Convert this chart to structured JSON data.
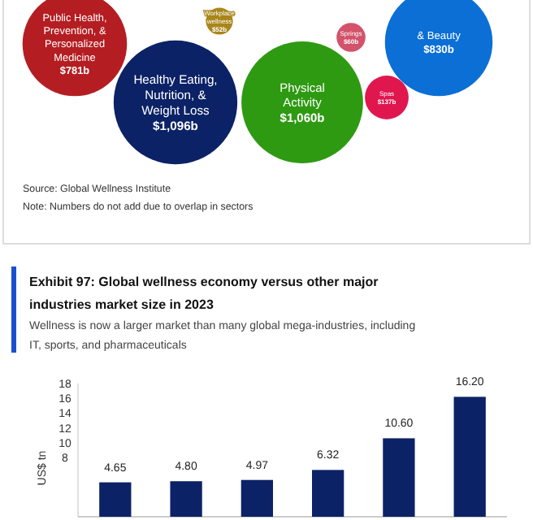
{
  "chart_data": [
    {
      "type": "other",
      "categories": [
        "Public Health, Prevention, & Personalized Medicine",
        "Healthy Eating, Nutrition, & Weight Loss",
        "Physical Activity",
        "& Beauty",
        "Springs",
        "Spas",
        "Workplace wellness"
      ],
      "value_labels": [
        "$781b",
        "$1,096b",
        "$1,060b",
        "$830b",
        "$60b",
        "$137b",
        "$52b"
      ],
      "values": [
        781,
        1096,
        1060,
        830,
        60,
        137,
        52
      ],
      "colors": [
        "#b41e23",
        "#0c2266",
        "#2e9a12",
        "#0b6fd6",
        "#d2536a",
        "#e0174f",
        "#a9861c"
      ],
      "annotations": [
        "Source: Global Wellness Institute",
        "Note: Numbers do not add due to overlap in sectors"
      ]
    },
    {
      "type": "bar",
      "title": "Exhibit 97: Global wellness economy versus other major industries market size in 2023",
      "subtitle": "Wellness is now a larger market than many global mega-industries, including IT, sports, and pharmaceuticals",
      "ylabel": "US$ tn",
      "categories": [
        null,
        null,
        null,
        null,
        null,
        null
      ],
      "values": [
        4.65,
        4.8,
        4.97,
        6.32,
        10.6,
        16.2
      ],
      "value_labels": [
        "4.65",
        "4.80",
        "4.97",
        "6.32",
        "10.60",
        "16.20"
      ],
      "color": "#0c2266",
      "ylim": [
        0,
        18
      ],
      "yticks": [
        8,
        10,
        12,
        14,
        16,
        18
      ]
    }
  ]
}
